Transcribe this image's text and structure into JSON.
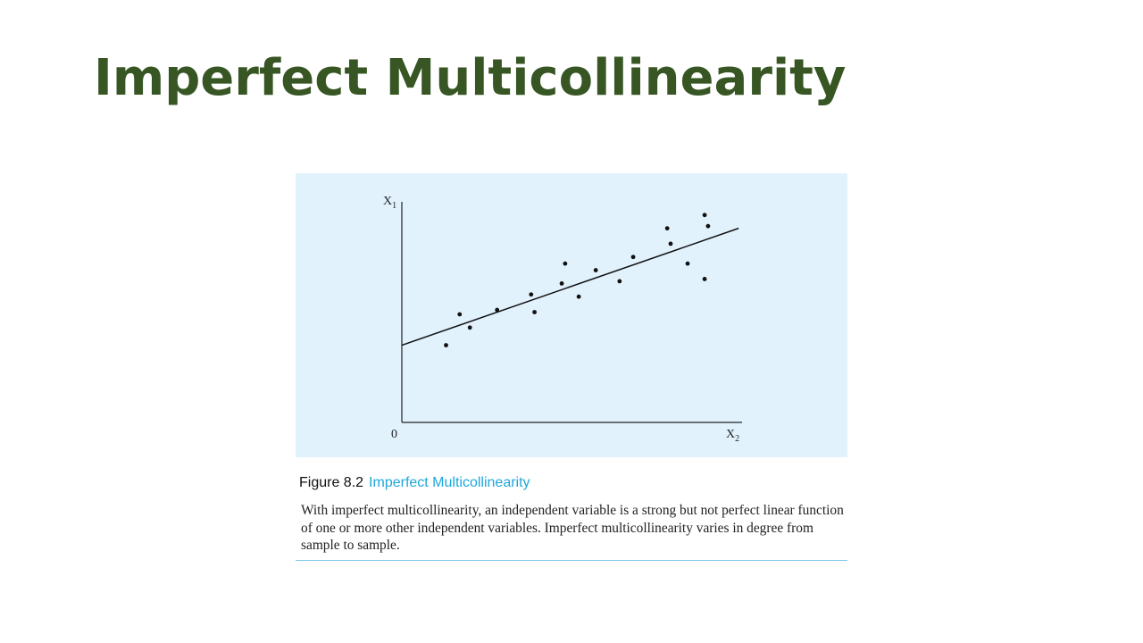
{
  "slide": {
    "title": "Imperfect Multicollinearity"
  },
  "figure": {
    "number": "Figure 8.2",
    "name": "Imperfect Multicollinearity",
    "caption": "With imperfect multicollinearity, an independent variable is a strong but not perfect linear function of one or more other independent variables. Imperfect multicollinearity varies in degree from sample to sample."
  },
  "chart_data": {
    "type": "scatter",
    "title": "",
    "x_axis": {
      "letter": "X",
      "subscript": "2",
      "origin_label": "0",
      "range": [
        0,
        10
      ],
      "ticks": false
    },
    "y_axis": {
      "letter": "X",
      "subscript": "1",
      "range": [
        0,
        10
      ],
      "ticks": false
    },
    "grid": false,
    "legend": "none",
    "points": [
      {
        "x": 1.3,
        "y": 3.5
      },
      {
        "x": 1.7,
        "y": 4.9
      },
      {
        "x": 2.0,
        "y": 4.3
      },
      {
        "x": 2.8,
        "y": 5.1
      },
      {
        "x": 3.8,
        "y": 5.8
      },
      {
        "x": 3.9,
        "y": 5.0
      },
      {
        "x": 4.7,
        "y": 6.3
      },
      {
        "x": 4.8,
        "y": 7.2
      },
      {
        "x": 5.2,
        "y": 5.7
      },
      {
        "x": 5.7,
        "y": 6.9
      },
      {
        "x": 6.4,
        "y": 6.4
      },
      {
        "x": 6.8,
        "y": 7.5
      },
      {
        "x": 7.8,
        "y": 8.8
      },
      {
        "x": 7.9,
        "y": 8.1
      },
      {
        "x": 8.4,
        "y": 7.2
      },
      {
        "x": 8.9,
        "y": 6.5
      },
      {
        "x": 8.9,
        "y": 9.4
      },
      {
        "x": 9.0,
        "y": 8.9
      }
    ],
    "fit_line": {
      "start": {
        "x": 0,
        "y": 3.5
      },
      "end": {
        "x": 9.9,
        "y": 8.8
      }
    },
    "colors": {
      "panel_background": "#e1f2fd",
      "points": "#111111",
      "line": "#111111",
      "axes": "#222222"
    }
  }
}
